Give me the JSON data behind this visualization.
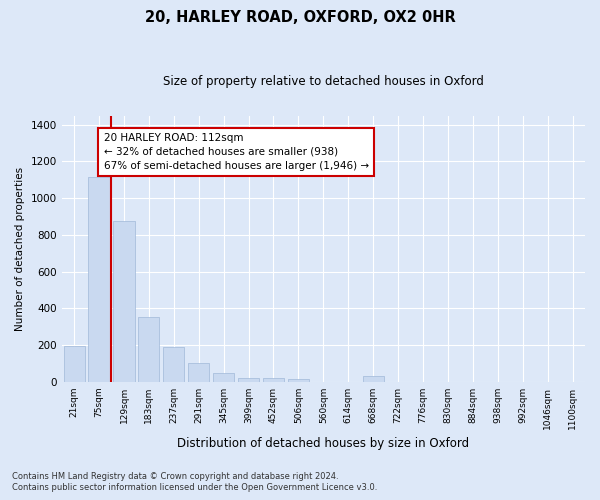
{
  "title": "20, HARLEY ROAD, OXFORD, OX2 0HR",
  "subtitle": "Size of property relative to detached houses in Oxford",
  "xlabel": "Distribution of detached houses by size in Oxford",
  "ylabel": "Number of detached properties",
  "categories": [
    "21sqm",
    "75sqm",
    "129sqm",
    "183sqm",
    "237sqm",
    "291sqm",
    "345sqm",
    "399sqm",
    "452sqm",
    "506sqm",
    "560sqm",
    "614sqm",
    "668sqm",
    "722sqm",
    "776sqm",
    "830sqm",
    "884sqm",
    "938sqm",
    "992sqm",
    "1046sqm",
    "1100sqm"
  ],
  "values": [
    195,
    1115,
    875,
    350,
    190,
    100,
    47,
    22,
    18,
    13,
    0,
    0,
    30,
    0,
    0,
    0,
    0,
    0,
    0,
    0,
    0
  ],
  "bar_color": "#c9d9f0",
  "bar_edge_color": "#a0b8d8",
  "vline_x_index": 1.47,
  "vline_color": "#cc0000",
  "annotation_text": "20 HARLEY ROAD: 112sqm\n← 32% of detached houses are smaller (938)\n67% of semi-detached houses are larger (1,946) →",
  "annotation_box_color": "#ffffff",
  "annotation_box_edge": "#cc0000",
  "ylim": [
    0,
    1450
  ],
  "yticks": [
    0,
    200,
    400,
    600,
    800,
    1000,
    1200,
    1400
  ],
  "footer_line1": "Contains HM Land Registry data © Crown copyright and database right 2024.",
  "footer_line2": "Contains public sector information licensed under the Open Government Licence v3.0.",
  "bg_color": "#dde8f8",
  "grid_color": "#ffffff"
}
